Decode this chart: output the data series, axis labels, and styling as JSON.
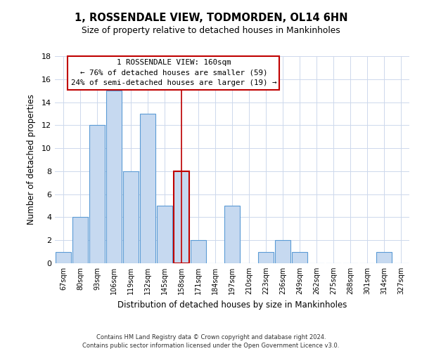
{
  "title": "1, ROSSENDALE VIEW, TODMORDEN, OL14 6HN",
  "subtitle": "Size of property relative to detached houses in Mankinholes",
  "xlabel": "Distribution of detached houses by size in Mankinholes",
  "ylabel": "Number of detached properties",
  "bin_labels": [
    "67sqm",
    "80sqm",
    "93sqm",
    "106sqm",
    "119sqm",
    "132sqm",
    "145sqm",
    "158sqm",
    "171sqm",
    "184sqm",
    "197sqm",
    "210sqm",
    "223sqm",
    "236sqm",
    "249sqm",
    "262sqm",
    "275sqm",
    "288sqm",
    "301sqm",
    "314sqm",
    "327sqm"
  ],
  "bar_values": [
    1,
    4,
    12,
    15,
    8,
    13,
    5,
    8,
    2,
    0,
    5,
    0,
    1,
    2,
    1,
    0,
    0,
    0,
    0,
    1,
    0
  ],
  "bar_color": "#c6d9f0",
  "bar_edge_color": "#5b9bd5",
  "highlight_bar_index": 7,
  "highlight_edge_color": "#c00000",
  "vline_color": "#c00000",
  "ylim": [
    0,
    18
  ],
  "yticks": [
    0,
    2,
    4,
    6,
    8,
    10,
    12,
    14,
    16,
    18
  ],
  "annotation_title": "1 ROSSENDALE VIEW: 160sqm",
  "annotation_line1": "← 76% of detached houses are smaller (59)",
  "annotation_line2": "24% of semi-detached houses are larger (19) →",
  "annotation_box_edge": "#c00000",
  "footer_line1": "Contains HM Land Registry data © Crown copyright and database right 2024.",
  "footer_line2": "Contains public sector information licensed under the Open Government Licence v3.0.",
  "background_color": "#ffffff",
  "grid_color": "#cdd8ec"
}
